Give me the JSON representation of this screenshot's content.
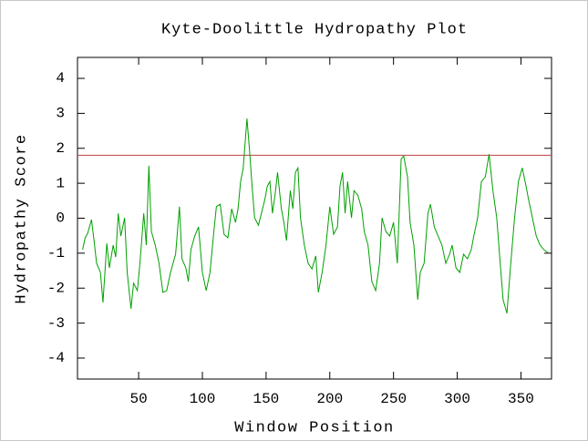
{
  "chart_data": {
    "type": "line",
    "title": "Kyte-Doolittle Hydropathy Plot",
    "x_label": "Window Position",
    "y_label": "Hydropathy Score",
    "x": [
      6,
      8,
      10,
      13,
      15,
      17,
      20,
      22,
      25,
      27,
      30,
      32,
      34,
      36,
      39,
      41,
      44,
      46,
      49,
      51,
      54,
      56,
      58,
      60,
      63,
      66,
      69,
      72,
      75,
      79,
      82,
      84,
      87,
      89,
      91,
      94,
      97,
      100,
      103,
      106,
      109,
      111,
      114,
      117,
      120,
      123,
      126,
      128,
      130,
      132,
      135,
      137,
      139,
      141,
      144,
      146,
      149,
      151,
      153,
      155,
      157,
      159,
      162,
      164,
      166,
      169,
      171,
      173,
      175,
      177,
      180,
      183,
      186,
      189,
      191,
      194,
      197,
      200,
      203,
      206,
      208,
      210,
      212,
      214,
      217,
      219,
      222,
      225,
      227,
      230,
      233,
      236,
      239,
      241,
      244,
      247,
      250,
      253,
      256,
      258,
      261,
      263,
      266,
      269,
      271,
      274,
      277,
      279,
      282,
      285,
      288,
      291,
      294,
      296,
      299,
      302,
      305,
      308,
      311,
      313,
      316,
      319,
      322,
      325,
      328,
      331,
      334,
      336,
      339,
      342,
      345,
      348,
      351,
      354,
      356,
      359,
      362,
      365,
      368,
      371
    ],
    "series": [
      {
        "color": "#00a000",
        "values": [
          -0.9,
          -0.56,
          -0.43,
          -0.04,
          -0.64,
          -1.29,
          -1.55,
          -2.41,
          -0.72,
          -1.42,
          -0.77,
          -1.11,
          0.14,
          -0.51,
          0.01,
          -1.55,
          -2.59,
          -1.86,
          -2.07,
          -1.29,
          0.14,
          -0.77,
          1.5,
          -0.38,
          -0.77,
          -1.29,
          -2.12,
          -2.07,
          -1.55,
          -1.03,
          0.33,
          -1.16,
          -1.42,
          -1.81,
          -0.9,
          -0.51,
          -0.25,
          -1.55,
          -2.07,
          -1.55,
          -0.38,
          0.33,
          0.4,
          -0.46,
          -0.56,
          0.27,
          -0.12,
          0.27,
          1.05,
          1.42,
          2.85,
          1.95,
          0.92,
          0.01,
          -0.2,
          0.09,
          0.53,
          0.92,
          1.05,
          0.14,
          0.66,
          1.31,
          0.27,
          -0.12,
          -0.64,
          0.79,
          0.27,
          1.31,
          1.44,
          0.01,
          -0.77,
          -1.29,
          -1.45,
          -1.08,
          -2.12,
          -1.55,
          -0.77,
          0.33,
          -0.46,
          -0.25,
          0.92,
          1.31,
          0.14,
          1.05,
          0.01,
          0.79,
          0.66,
          0.27,
          -0.38,
          -0.77,
          -1.81,
          -2.07,
          -1.29,
          0.01,
          -0.38,
          -0.51,
          -0.12,
          -1.29,
          1.7,
          1.78,
          1.18,
          -0.12,
          -0.77,
          -2.33,
          -1.55,
          -1.29,
          0.14,
          0.4,
          -0.25,
          -0.51,
          -0.77,
          -1.29,
          -1.03,
          -0.77,
          -1.42,
          -1.55,
          -1.03,
          -1.16,
          -0.9,
          -0.51,
          0.01,
          1.05,
          1.18,
          1.83,
          0.79,
          0.01,
          -1.42,
          -2.33,
          -2.72,
          -1.29,
          0.01,
          1.05,
          1.44,
          0.92,
          0.53,
          0.01,
          -0.51,
          -0.77,
          -0.9,
          -0.98
        ]
      }
    ],
    "reference_line": {
      "value": 1.8,
      "color": "#c04040"
    },
    "xlim": [
      2,
      374
    ],
    "xticks": [
      50,
      100,
      150,
      200,
      250,
      300,
      350
    ],
    "ylim": [
      -4.6,
      4.6
    ],
    "yticks": [
      -4,
      -3,
      -2,
      -1,
      0,
      1,
      2,
      3,
      4
    ]
  }
}
